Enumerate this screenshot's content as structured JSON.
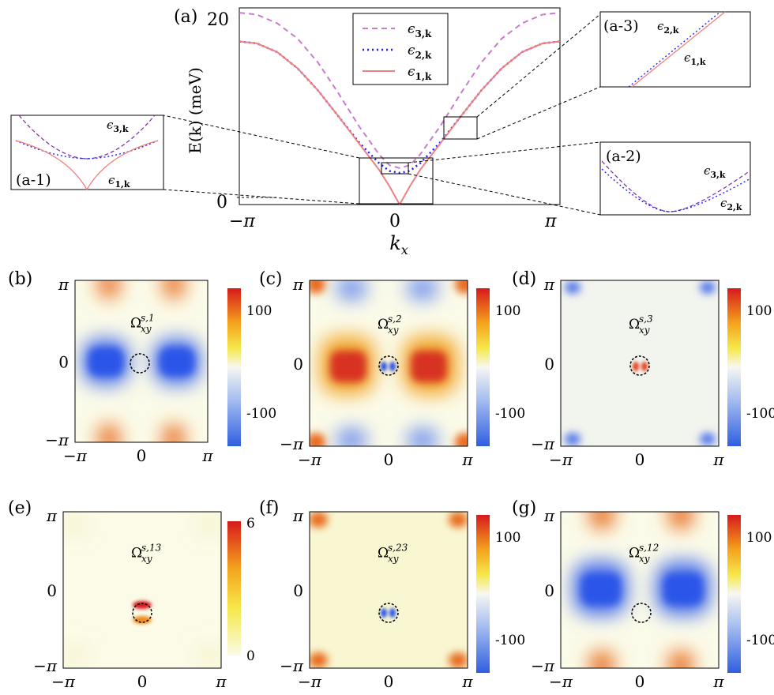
{
  "chart_data": [
    {
      "id": "a",
      "panel_label": "(a)",
      "type": "line",
      "xlabel": "k_x",
      "ylabel": "E(k) (meV)",
      "x_ticks": [
        "−π",
        "0",
        "π"
      ],
      "y_ticks": [
        "0",
        "20"
      ],
      "xlim": [
        -3.14159,
        3.14159
      ],
      "ylim": [
        0,
        20.5
      ],
      "x": [
        -3.14,
        -2.8,
        -2.4,
        -2.0,
        -1.6,
        -1.2,
        -0.8,
        -0.4,
        -0.2,
        0,
        0.2,
        0.4,
        0.8,
        1.2,
        1.6,
        2.0,
        2.4,
        2.8,
        3.14
      ],
      "series": [
        {
          "name": "ϵ3,k",
          "style": "dashed",
          "color": "#c77dcc",
          "values": [
            20.0,
            19.8,
            18.9,
            17.3,
            14.8,
            11.6,
            8.2,
            5.2,
            4.1,
            3.8,
            4.1,
            5.2,
            8.2,
            11.6,
            14.8,
            17.3,
            18.9,
            19.8,
            20.0
          ]
        },
        {
          "name": "ϵ2,k",
          "style": "dotted",
          "color": "#1a1aff",
          "values": [
            17.0,
            16.8,
            15.9,
            14.2,
            11.9,
            9.2,
            6.5,
            4.3,
            3.5,
            3.3,
            3.5,
            4.3,
            6.5,
            9.2,
            11.9,
            14.2,
            15.9,
            16.8,
            17.0
          ]
        },
        {
          "name": "ϵ1,k",
          "style": "solid",
          "color": "#f08080",
          "values": [
            17.0,
            16.8,
            15.9,
            14.2,
            11.9,
            9.2,
            6.4,
            3.6,
            1.9,
            0.0,
            1.9,
            3.6,
            6.4,
            9.2,
            11.9,
            14.2,
            15.9,
            16.8,
            17.0
          ]
        }
      ],
      "insets": [
        {
          "label": "(a-1)",
          "curves": [
            "ϵ3,k",
            "ϵ1,k"
          ]
        },
        {
          "label": "(a-2)",
          "curves": [
            "ϵ3,k",
            "ϵ2,k"
          ]
        },
        {
          "label": "(a-3)",
          "curves": [
            "ϵ2,k",
            "ϵ1,k"
          ]
        }
      ]
    },
    {
      "id": "b",
      "panel_label": "(b)",
      "type": "heatmap",
      "annotation": "Ω",
      "ann_sup": "s,1",
      "ann_sub": "xy",
      "colorbar_ticks": [
        "100",
        "-100"
      ],
      "x_ticks": [
        "−π",
        "0",
        "π"
      ],
      "y_ticks": [
        "π",
        "0",
        "−π"
      ]
    },
    {
      "id": "c",
      "panel_label": "(c)",
      "type": "heatmap",
      "annotation": "Ω",
      "ann_sup": "s,2",
      "ann_sub": "xy",
      "colorbar_ticks": [
        "100",
        "-100"
      ],
      "x_ticks": [
        "−π",
        "0",
        "π"
      ],
      "y_ticks": [
        "π",
        "0",
        "−π"
      ]
    },
    {
      "id": "d",
      "panel_label": "(d)",
      "type": "heatmap",
      "annotation": "Ω",
      "ann_sup": "s,3",
      "ann_sub": "xy",
      "colorbar_ticks": [
        "100",
        "-100"
      ],
      "x_ticks": [
        "−π",
        "0",
        "π"
      ],
      "y_ticks": [
        "π",
        "0",
        "−π"
      ]
    },
    {
      "id": "e",
      "panel_label": "(e)",
      "type": "heatmap",
      "annotation": "Ω",
      "ann_sup": "s,13",
      "ann_sub": "xy",
      "colorbar_ticks": [
        "6",
        "0"
      ],
      "x_ticks": [
        "−π",
        "0",
        "π"
      ],
      "y_ticks": [
        "π",
        "0",
        "−π"
      ]
    },
    {
      "id": "f",
      "panel_label": "(f)",
      "type": "heatmap",
      "annotation": "Ω",
      "ann_sup": "s,23",
      "ann_sub": "xy",
      "colorbar_ticks": [
        "100",
        "-100"
      ],
      "x_ticks": [
        "−π",
        "0",
        "π"
      ],
      "y_ticks": [
        "π",
        "0",
        "−π"
      ]
    },
    {
      "id": "g",
      "panel_label": "(g)",
      "type": "heatmap",
      "annotation": "Ω",
      "ann_sup": "s,12",
      "ann_sub": "xy",
      "colorbar_ticks": [
        "100",
        "-100"
      ],
      "x_ticks": [
        "−π",
        "0",
        "π"
      ],
      "y_ticks": [
        "π",
        "0",
        "−π"
      ]
    }
  ]
}
